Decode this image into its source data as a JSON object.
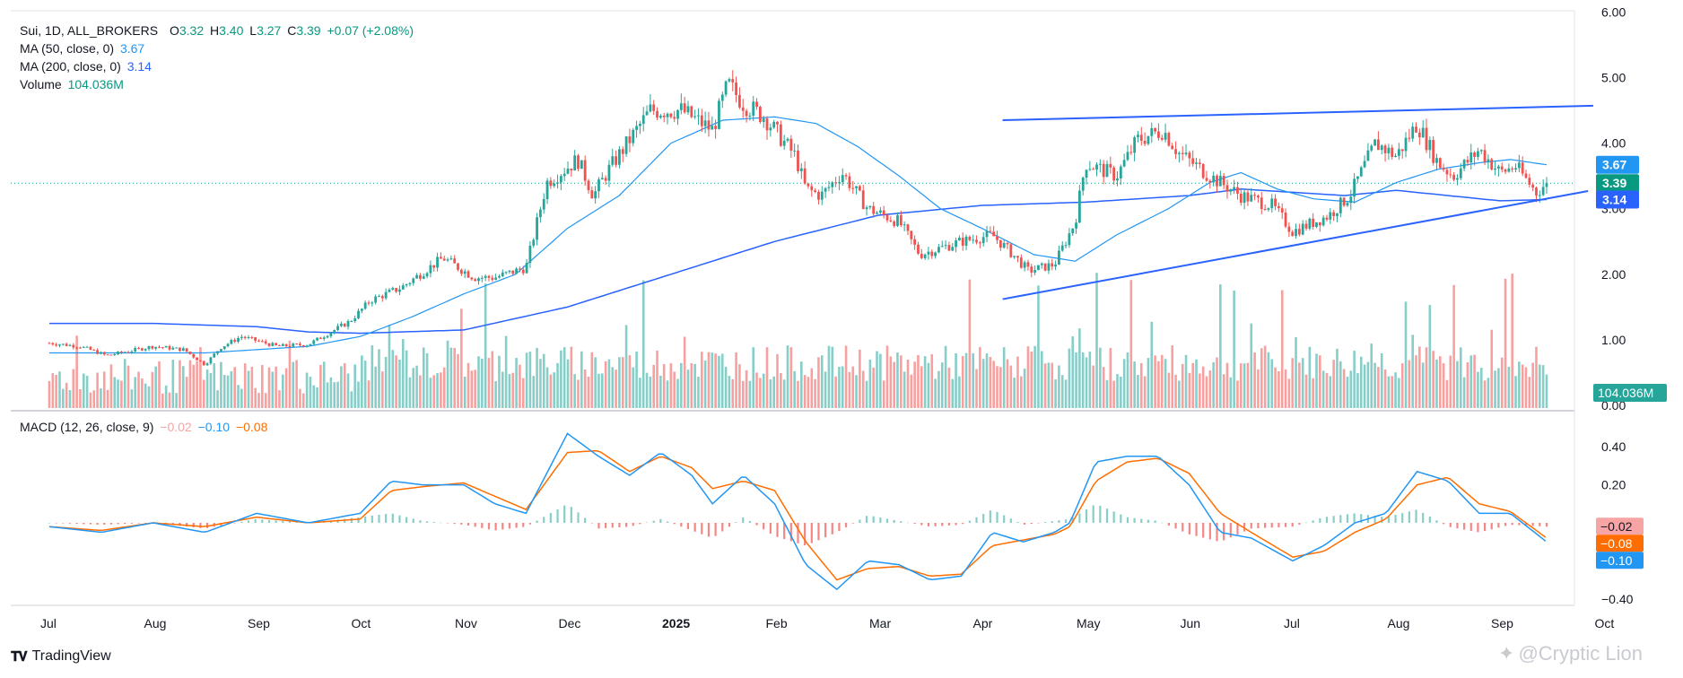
{
  "legend": {
    "symbol": "Sui, 1D, ALL_BROKERS",
    "o_label": "O",
    "o_value": "3.32",
    "h_label": "H",
    "h_value": "3.40",
    "l_label": "L",
    "l_value": "3.27",
    "c_label": "C",
    "c_value": "3.39",
    "change": "+0.07 (+2.08%)",
    "ma50_label": "MA (50, close, 0)",
    "ma50_value": "3.67",
    "ma200_label": "MA (200, close, 0)",
    "ma200_value": "3.14",
    "volume_label": "Volume",
    "volume_value": "104.036M",
    "macd_label": "MACD (12, 26, close, 9)",
    "macd_hist": "−0.02",
    "macd_line": "−0.10",
    "macd_signal": "−0.08"
  },
  "brand": {
    "name": "TradingView"
  },
  "watermark": {
    "text": "@Cryptic Lion"
  },
  "colors": {
    "up": "#26a69a",
    "down": "#ef5350",
    "ma50": "#2196f3",
    "ma200": "#2962ff",
    "trendline": "#2962ff",
    "macd": "#2196f3",
    "signal": "#ff6d00"
  },
  "chart_data": [
    {
      "type": "candlestick",
      "title": "Sui, 1D, ALL_BROKERS",
      "yticks": [
        "0.00",
        "1.00",
        "2.00",
        "3.00",
        "4.00",
        "5.00",
        "6.00"
      ],
      "ylim": [
        0,
        6
      ],
      "xticks": [
        "Jul",
        "Aug",
        "Sep",
        "Oct",
        "Nov",
        "Dec",
        "2025",
        "Feb",
        "Mar",
        "Apr",
        "May",
        "Jun",
        "Jul",
        "Aug",
        "Sep",
        "Oct"
      ],
      "price_keypoints": [
        {
          "m": 0.0,
          "v": 0.95
        },
        {
          "m": 0.3,
          "v": 0.9
        },
        {
          "m": 0.55,
          "v": 0.76
        },
        {
          "m": 1.0,
          "v": 0.9
        },
        {
          "m": 1.3,
          "v": 0.85
        },
        {
          "m": 1.5,
          "v": 0.62
        },
        {
          "m": 1.65,
          "v": 0.88
        },
        {
          "m": 1.85,
          "v": 1.05
        },
        {
          "m": 2.2,
          "v": 0.9
        },
        {
          "m": 2.5,
          "v": 0.93
        },
        {
          "m": 2.9,
          "v": 1.28
        },
        {
          "m": 3.1,
          "v": 1.6
        },
        {
          "m": 3.4,
          "v": 1.8
        },
        {
          "m": 3.8,
          "v": 2.25
        },
        {
          "m": 4.1,
          "v": 1.95
        },
        {
          "m": 4.3,
          "v": 1.95
        },
        {
          "m": 4.6,
          "v": 2.1
        },
        {
          "m": 4.8,
          "v": 3.4
        },
        {
          "m": 5.1,
          "v": 3.75
        },
        {
          "m": 5.25,
          "v": 3.2
        },
        {
          "m": 5.4,
          "v": 3.6
        },
        {
          "m": 5.8,
          "v": 4.5
        },
        {
          "m": 6.1,
          "v": 4.5
        },
        {
          "m": 6.4,
          "v": 4.2
        },
        {
          "m": 6.55,
          "v": 4.9
        },
        {
          "m": 6.7,
          "v": 4.6
        },
        {
          "m": 6.9,
          "v": 4.4
        },
        {
          "m": 7.2,
          "v": 3.8
        },
        {
          "m": 7.3,
          "v": 3.3
        },
        {
          "m": 7.45,
          "v": 3.2
        },
        {
          "m": 7.65,
          "v": 3.55
        },
        {
          "m": 7.9,
          "v": 3.0
        },
        {
          "m": 8.2,
          "v": 2.8
        },
        {
          "m": 8.4,
          "v": 2.3
        },
        {
          "m": 8.8,
          "v": 2.5
        },
        {
          "m": 9.1,
          "v": 2.6
        },
        {
          "m": 9.3,
          "v": 2.3
        },
        {
          "m": 9.45,
          "v": 2.05
        },
        {
          "m": 9.7,
          "v": 2.15
        },
        {
          "m": 9.9,
          "v": 2.8
        },
        {
          "m": 10.0,
          "v": 3.7
        },
        {
          "m": 10.3,
          "v": 3.5
        },
        {
          "m": 10.5,
          "v": 4.05
        },
        {
          "m": 10.75,
          "v": 4.2
        },
        {
          "m": 10.9,
          "v": 3.85
        },
        {
          "m": 11.2,
          "v": 3.5
        },
        {
          "m": 11.5,
          "v": 3.2
        },
        {
          "m": 11.8,
          "v": 3.05
        },
        {
          "m": 12.0,
          "v": 2.65
        },
        {
          "m": 12.35,
          "v": 2.9
        },
        {
          "m": 12.55,
          "v": 3.2
        },
        {
          "m": 12.8,
          "v": 4.0
        },
        {
          "m": 13.0,
          "v": 3.8
        },
        {
          "m": 13.2,
          "v": 4.3
        },
        {
          "m": 13.4,
          "v": 3.7
        },
        {
          "m": 13.55,
          "v": 3.5
        },
        {
          "m": 13.8,
          "v": 3.9
        },
        {
          "m": 14.0,
          "v": 3.55
        },
        {
          "m": 14.15,
          "v": 3.65
        },
        {
          "m": 14.35,
          "v": 3.25
        },
        {
          "m": 14.45,
          "v": 3.39
        }
      ],
      "ma50_keypoints": [
        {
          "m": 0.0,
          "v": 0.8
        },
        {
          "m": 1.0,
          "v": 0.8
        },
        {
          "m": 1.5,
          "v": 0.8
        },
        {
          "m": 2.0,
          "v": 0.85
        },
        {
          "m": 2.5,
          "v": 0.9
        },
        {
          "m": 3.0,
          "v": 1.05
        },
        {
          "m": 3.5,
          "v": 1.35
        },
        {
          "m": 4.0,
          "v": 1.7
        },
        {
          "m": 4.5,
          "v": 2.0
        },
        {
          "m": 5.0,
          "v": 2.7
        },
        {
          "m": 5.5,
          "v": 3.2
        },
        {
          "m": 6.0,
          "v": 4.0
        },
        {
          "m": 6.5,
          "v": 4.35
        },
        {
          "m": 7.0,
          "v": 4.4
        },
        {
          "m": 7.4,
          "v": 4.3
        },
        {
          "m": 7.8,
          "v": 3.95
        },
        {
          "m": 8.2,
          "v": 3.5
        },
        {
          "m": 8.6,
          "v": 3.0
        },
        {
          "m": 9.0,
          "v": 2.7
        },
        {
          "m": 9.5,
          "v": 2.3
        },
        {
          "m": 9.9,
          "v": 2.2
        },
        {
          "m": 10.3,
          "v": 2.6
        },
        {
          "m": 10.8,
          "v": 3.0
        },
        {
          "m": 11.2,
          "v": 3.4
        },
        {
          "m": 11.5,
          "v": 3.55
        },
        {
          "m": 11.85,
          "v": 3.3
        },
        {
          "m": 12.2,
          "v": 3.15
        },
        {
          "m": 12.6,
          "v": 3.1
        },
        {
          "m": 13.0,
          "v": 3.4
        },
        {
          "m": 13.4,
          "v": 3.6
        },
        {
          "m": 13.8,
          "v": 3.7
        },
        {
          "m": 14.1,
          "v": 3.75
        },
        {
          "m": 14.45,
          "v": 3.67
        }
      ],
      "ma200_keypoints": [
        {
          "m": 0.0,
          "v": 1.25
        },
        {
          "m": 1.0,
          "v": 1.25
        },
        {
          "m": 2.0,
          "v": 1.2
        },
        {
          "m": 2.5,
          "v": 1.12
        },
        {
          "m": 3.0,
          "v": 1.1
        },
        {
          "m": 4.0,
          "v": 1.15
        },
        {
          "m": 5.0,
          "v": 1.5
        },
        {
          "m": 6.0,
          "v": 2.0
        },
        {
          "m": 7.0,
          "v": 2.5
        },
        {
          "m": 8.0,
          "v": 2.9
        },
        {
          "m": 9.0,
          "v": 3.05
        },
        {
          "m": 10.0,
          "v": 3.1
        },
        {
          "m": 11.0,
          "v": 3.2
        },
        {
          "m": 11.5,
          "v": 3.3
        },
        {
          "m": 12.0,
          "v": 3.25
        },
        {
          "m": 12.5,
          "v": 3.2
        },
        {
          "m": 13.0,
          "v": 3.28
        },
        {
          "m": 13.5,
          "v": 3.2
        },
        {
          "m": 14.0,
          "v": 3.12
        },
        {
          "m": 14.45,
          "v": 3.14
        }
      ],
      "trendlines": [
        {
          "m1": 9.2,
          "v1": 4.35,
          "m2": 14.9,
          "v2": 4.57
        },
        {
          "m1": 9.2,
          "v1": 1.62,
          "m2": 14.85,
          "v2": 3.27
        }
      ],
      "price_labels": [
        {
          "text": "3.67",
          "v": 3.67,
          "color": "#2196f3"
        },
        {
          "text": "3.39",
          "v": 3.39,
          "color": "#089981"
        },
        {
          "text": "3.14",
          "v": 3.14,
          "color": "#2962ff"
        }
      ],
      "volume_label": "104.036M",
      "last_close": 3.39
    },
    {
      "type": "macd",
      "title": "MACD (12, 26, close, 9)",
      "yticks": [
        "−0.40",
        "0.20",
        "0.40"
      ],
      "ylim": [
        -0.45,
        0.5
      ],
      "macd_keypoints": [
        {
          "m": 0.0,
          "v": -0.02
        },
        {
          "m": 0.5,
          "v": -0.05
        },
        {
          "m": 1.0,
          "v": 0.0
        },
        {
          "m": 1.5,
          "v": -0.05
        },
        {
          "m": 2.0,
          "v": 0.05
        },
        {
          "m": 2.5,
          "v": 0.0
        },
        {
          "m": 3.0,
          "v": 0.05
        },
        {
          "m": 3.3,
          "v": 0.22
        },
        {
          "m": 3.6,
          "v": 0.2
        },
        {
          "m": 4.0,
          "v": 0.2
        },
        {
          "m": 4.3,
          "v": 0.1
        },
        {
          "m": 4.6,
          "v": 0.05
        },
        {
          "m": 5.0,
          "v": 0.47
        },
        {
          "m": 5.3,
          "v": 0.35
        },
        {
          "m": 5.6,
          "v": 0.25
        },
        {
          "m": 5.9,
          "v": 0.37
        },
        {
          "m": 6.2,
          "v": 0.25
        },
        {
          "m": 6.4,
          "v": 0.1
        },
        {
          "m": 6.7,
          "v": 0.25
        },
        {
          "m": 7.0,
          "v": 0.1
        },
        {
          "m": 7.3,
          "v": -0.22
        },
        {
          "m": 7.6,
          "v": -0.35
        },
        {
          "m": 7.9,
          "v": -0.2
        },
        {
          "m": 8.2,
          "v": -0.22
        },
        {
          "m": 8.5,
          "v": -0.3
        },
        {
          "m": 8.8,
          "v": -0.28
        },
        {
          "m": 9.1,
          "v": -0.05
        },
        {
          "m": 9.4,
          "v": -0.1
        },
        {
          "m": 9.7,
          "v": -0.05
        },
        {
          "m": 9.85,
          "v": 0.0
        },
        {
          "m": 10.1,
          "v": 0.32
        },
        {
          "m": 10.4,
          "v": 0.35
        },
        {
          "m": 10.7,
          "v": 0.35
        },
        {
          "m": 11.0,
          "v": 0.2
        },
        {
          "m": 11.3,
          "v": -0.05
        },
        {
          "m": 11.6,
          "v": -0.08
        },
        {
          "m": 12.0,
          "v": -0.2
        },
        {
          "m": 12.3,
          "v": -0.12
        },
        {
          "m": 12.6,
          "v": 0.0
        },
        {
          "m": 12.9,
          "v": 0.05
        },
        {
          "m": 13.2,
          "v": 0.27
        },
        {
          "m": 13.5,
          "v": 0.22
        },
        {
          "m": 13.8,
          "v": 0.05
        },
        {
          "m": 14.1,
          "v": 0.05
        },
        {
          "m": 14.45,
          "v": -0.1
        }
      ],
      "signal_keypoints": [
        {
          "m": 0.0,
          "v": -0.02
        },
        {
          "m": 0.5,
          "v": -0.04
        },
        {
          "m": 1.0,
          "v": 0.0
        },
        {
          "m": 1.5,
          "v": -0.02
        },
        {
          "m": 2.0,
          "v": 0.03
        },
        {
          "m": 2.5,
          "v": 0.0
        },
        {
          "m": 3.0,
          "v": 0.02
        },
        {
          "m": 3.3,
          "v": 0.17
        },
        {
          "m": 3.6,
          "v": 0.19
        },
        {
          "m": 4.0,
          "v": 0.21
        },
        {
          "m": 4.3,
          "v": 0.14
        },
        {
          "m": 4.6,
          "v": 0.07
        },
        {
          "m": 5.0,
          "v": 0.37
        },
        {
          "m": 5.3,
          "v": 0.38
        },
        {
          "m": 5.6,
          "v": 0.27
        },
        {
          "m": 5.9,
          "v": 0.35
        },
        {
          "m": 6.2,
          "v": 0.29
        },
        {
          "m": 6.4,
          "v": 0.18
        },
        {
          "m": 6.7,
          "v": 0.22
        },
        {
          "m": 7.0,
          "v": 0.17
        },
        {
          "m": 7.3,
          "v": -0.1
        },
        {
          "m": 7.6,
          "v": -0.3
        },
        {
          "m": 7.9,
          "v": -0.24
        },
        {
          "m": 8.2,
          "v": -0.23
        },
        {
          "m": 8.5,
          "v": -0.28
        },
        {
          "m": 8.8,
          "v": -0.27
        },
        {
          "m": 9.1,
          "v": -0.12
        },
        {
          "m": 9.4,
          "v": -0.09
        },
        {
          "m": 9.7,
          "v": -0.06
        },
        {
          "m": 9.85,
          "v": -0.02
        },
        {
          "m": 10.1,
          "v": 0.22
        },
        {
          "m": 10.4,
          "v": 0.32
        },
        {
          "m": 10.7,
          "v": 0.34
        },
        {
          "m": 11.0,
          "v": 0.26
        },
        {
          "m": 11.3,
          "v": 0.05
        },
        {
          "m": 11.6,
          "v": -0.05
        },
        {
          "m": 12.0,
          "v": -0.18
        },
        {
          "m": 12.3,
          "v": -0.15
        },
        {
          "m": 12.6,
          "v": -0.05
        },
        {
          "m": 12.9,
          "v": 0.02
        },
        {
          "m": 13.2,
          "v": 0.2
        },
        {
          "m": 13.5,
          "v": 0.24
        },
        {
          "m": 13.8,
          "v": 0.1
        },
        {
          "m": 14.1,
          "v": 0.06
        },
        {
          "m": 14.45,
          "v": -0.08
        }
      ],
      "price_labels": [
        {
          "text": "−0.02",
          "v": -0.02,
          "color": "#f7a4a4"
        },
        {
          "text": "−0.08",
          "v": -0.08,
          "color": "#ff6d00"
        },
        {
          "text": "−0.10",
          "v": -0.1,
          "color": "#2196f3"
        }
      ]
    }
  ]
}
